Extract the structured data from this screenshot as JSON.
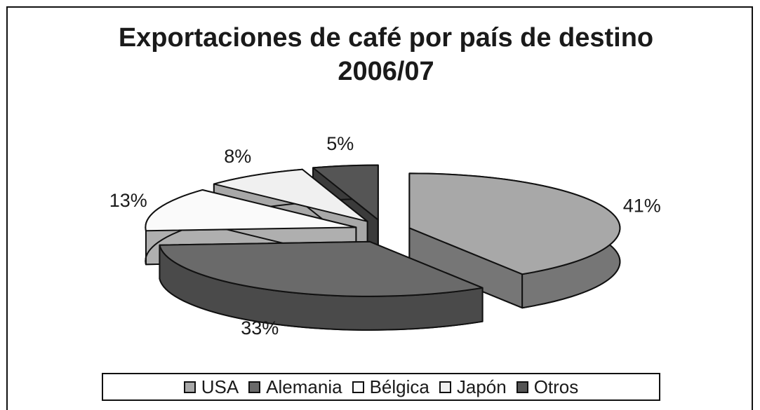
{
  "chart_data": {
    "type": "pie",
    "title": "Exportaciones de café por país de destino 2006/07",
    "categories": [
      "USA",
      "Alemania",
      "Bélgica",
      "Japón",
      "Otros"
    ],
    "values": [
      41,
      33,
      13,
      8,
      5
    ],
    "value_labels": [
      "41%",
      "33%",
      "13%",
      "8%",
      "5%"
    ],
    "colors": [
      "#a8a8a8",
      "#6a6a6a",
      "#fafafa",
      "#f0f0f0",
      "#555555"
    ],
    "legend": "bottom"
  }
}
